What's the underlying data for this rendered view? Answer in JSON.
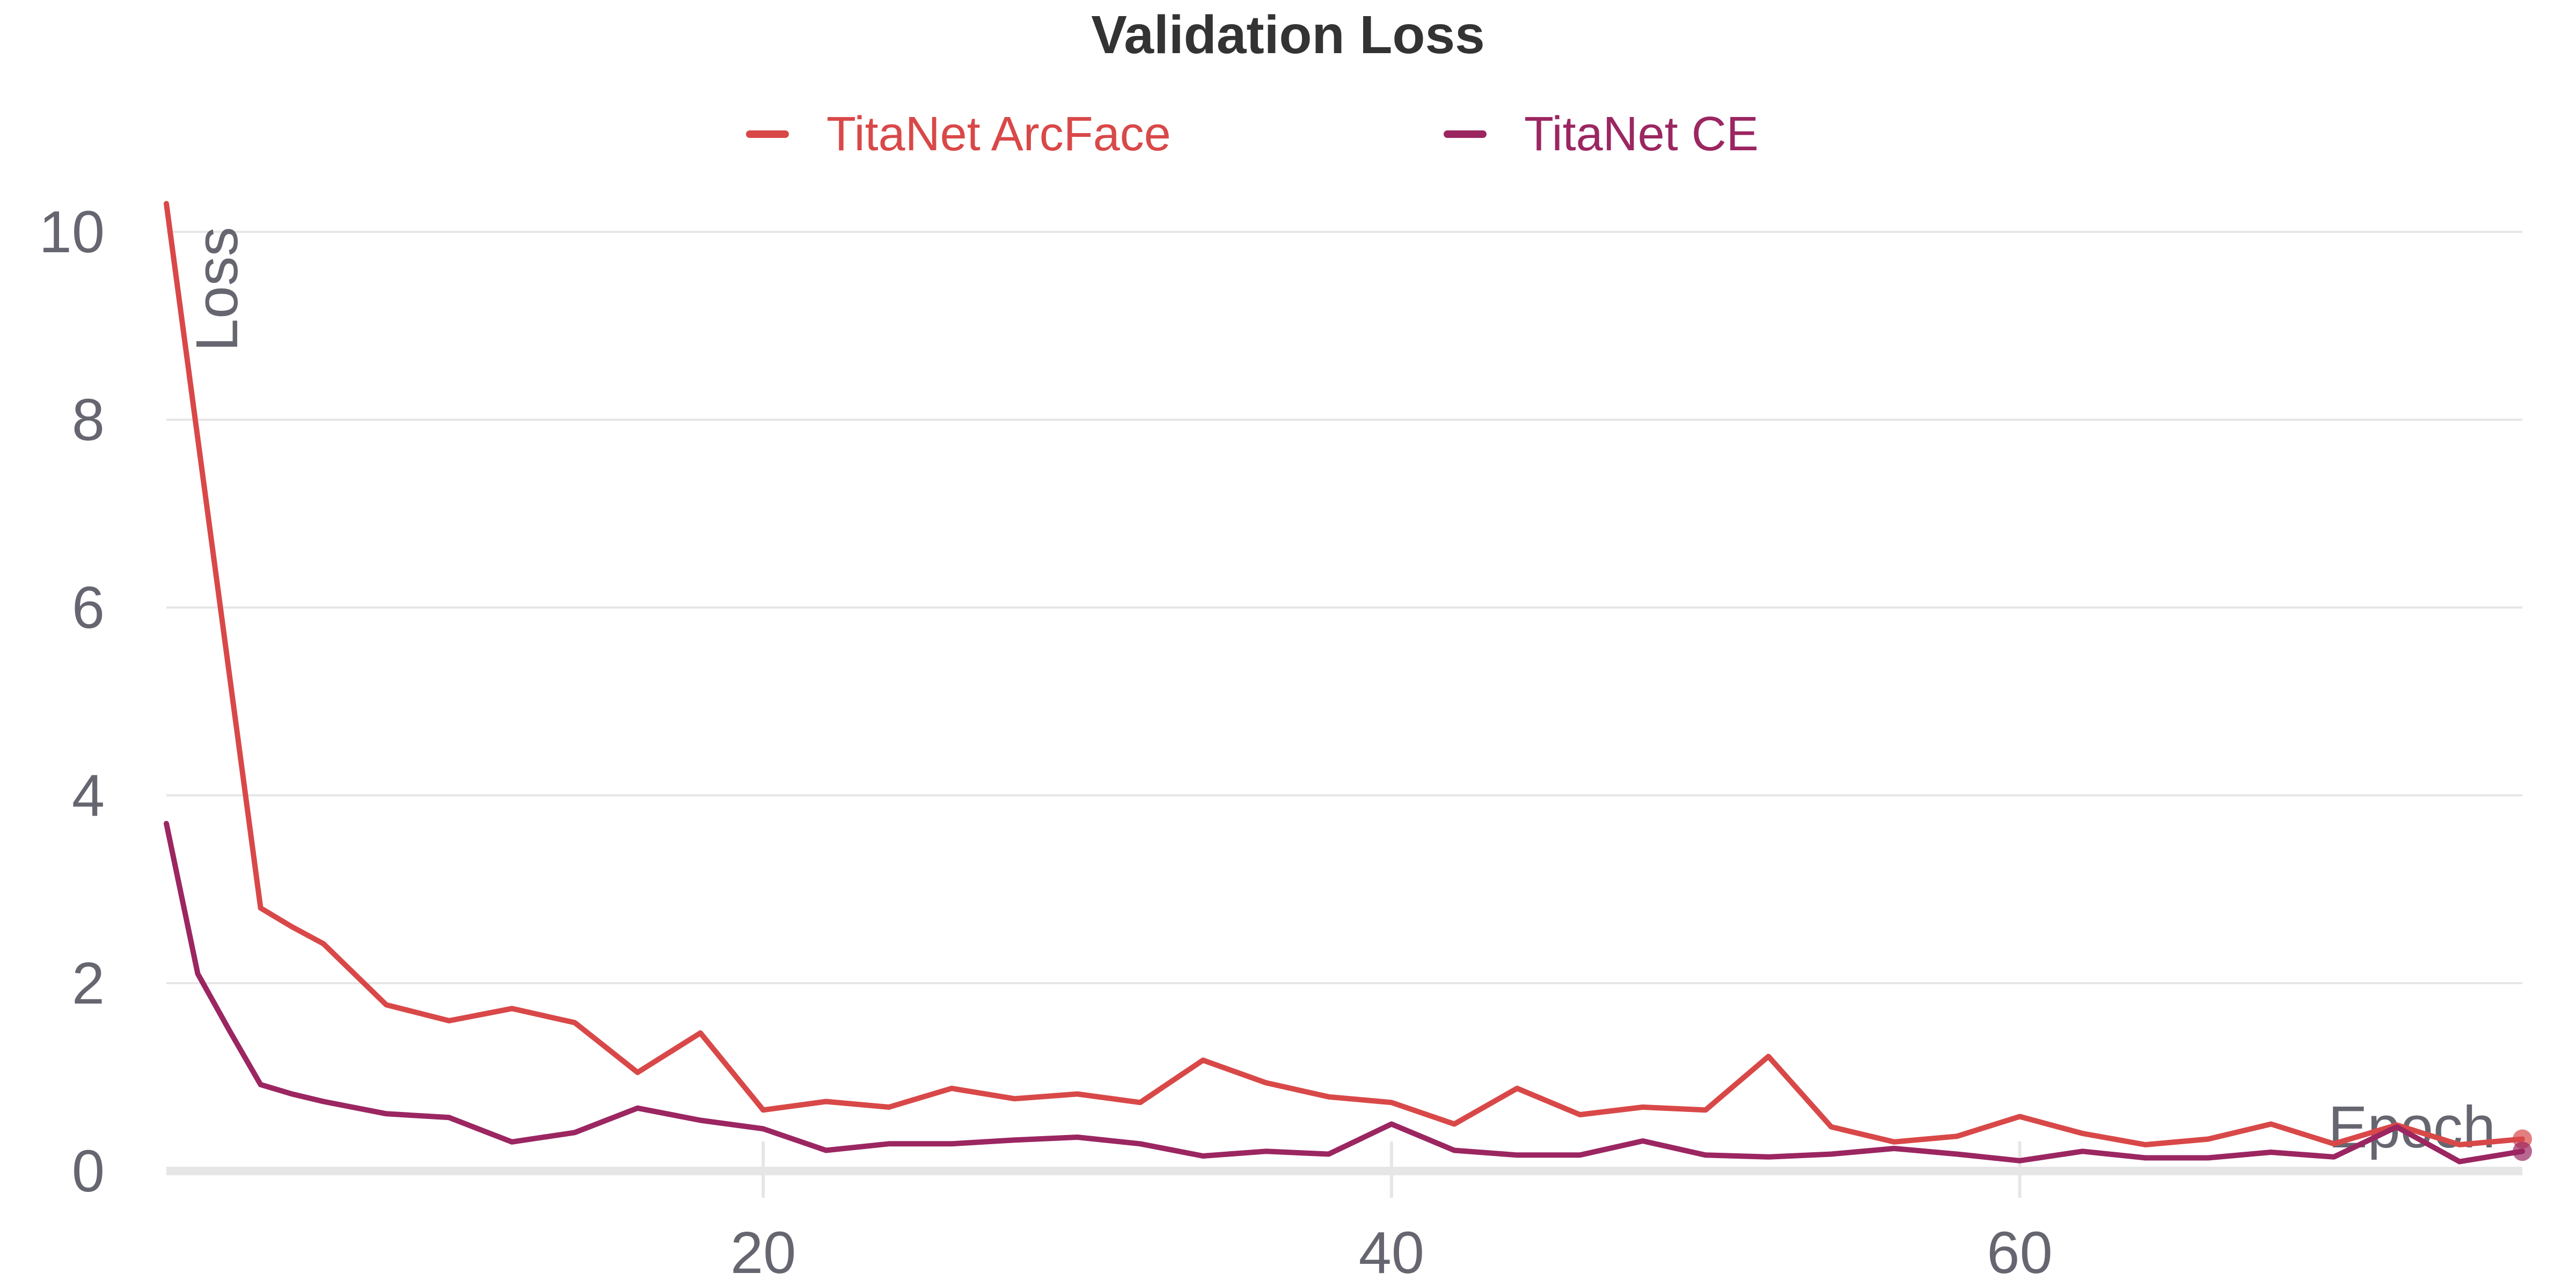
{
  "chart_data": {
    "type": "line",
    "title": "Validation Loss",
    "xlabel": "Epoch",
    "ylabel": "Loss",
    "xlim": [
      1,
      76
    ],
    "ylim": [
      0,
      10.3
    ],
    "xticks": [
      20,
      40,
      60
    ],
    "yticks": [
      0,
      2,
      4,
      6,
      8,
      10
    ],
    "grid": true,
    "legend_position": "top-center",
    "series": [
      {
        "name": "TitaNet ArcFace",
        "color": "#d94848",
        "x": [
          1,
          2,
          3,
          4,
          5,
          6,
          8,
          10,
          12,
          14,
          16,
          18,
          20,
          22,
          24,
          26,
          28,
          30,
          32,
          34,
          36,
          38,
          40,
          42,
          44,
          46,
          48,
          50,
          52,
          54,
          56,
          58,
          60,
          62,
          64,
          66,
          68,
          70,
          72,
          74,
          76
        ],
        "y": [
          10.3,
          7.8,
          5.3,
          2.8,
          2.6,
          2.42,
          1.77,
          1.6,
          1.73,
          1.58,
          1.05,
          1.47,
          0.65,
          0.74,
          0.68,
          0.88,
          0.77,
          0.82,
          0.73,
          1.18,
          0.94,
          0.79,
          0.73,
          0.5,
          0.88,
          0.6,
          0.68,
          0.65,
          1.22,
          0.47,
          0.31,
          0.37,
          0.58,
          0.4,
          0.28,
          0.34,
          0.5,
          0.29,
          0.49,
          0.28,
          0.34
        ]
      },
      {
        "name": "TitaNet CE",
        "color": "#9b2661",
        "x": [
          1,
          2,
          3,
          4,
          5,
          6,
          8,
          10,
          12,
          14,
          16,
          18,
          20,
          22,
          24,
          26,
          28,
          30,
          32,
          34,
          36,
          38,
          40,
          42,
          44,
          46,
          48,
          50,
          52,
          54,
          56,
          58,
          60,
          62,
          64,
          66,
          68,
          70,
          72,
          74,
          76
        ],
        "y": [
          3.7,
          2.1,
          1.5,
          0.92,
          0.82,
          0.74,
          0.61,
          0.57,
          0.31,
          0.41,
          0.67,
          0.54,
          0.45,
          0.22,
          0.29,
          0.29,
          0.33,
          0.36,
          0.29,
          0.16,
          0.21,
          0.18,
          0.5,
          0.22,
          0.17,
          0.17,
          0.32,
          0.17,
          0.15,
          0.18,
          0.24,
          0.18,
          0.11,
          0.21,
          0.14,
          0.14,
          0.2,
          0.15,
          0.47,
          0.1,
          0.21
        ]
      }
    ]
  }
}
